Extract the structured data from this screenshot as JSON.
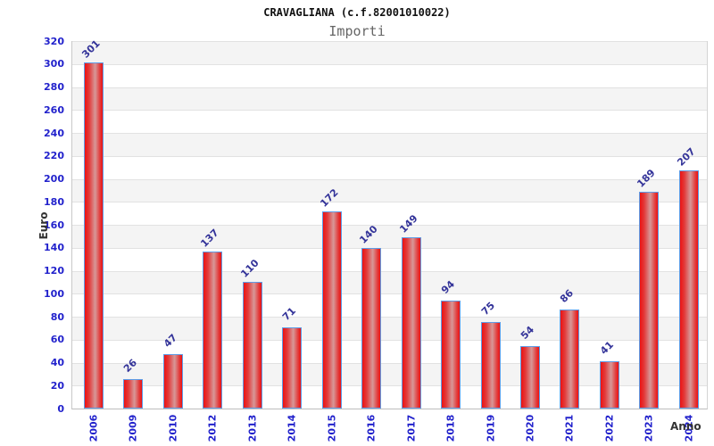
{
  "chart_data": {
    "type": "bar",
    "title": "CRAVAGLIANA (c.f.82001010022)",
    "subtitle": "Importi",
    "xlabel": "Anno",
    "ylabel": "Euro",
    "categories": [
      "2006",
      "2009",
      "2010",
      "2012",
      "2013",
      "2014",
      "2015",
      "2016",
      "2017",
      "2018",
      "2019",
      "2020",
      "2021",
      "2022",
      "2023",
      "2024"
    ],
    "values": [
      301,
      26,
      47,
      137,
      110,
      71,
      172,
      140,
      149,
      94,
      75,
      54,
      86,
      41,
      189,
      207
    ],
    "ylim": [
      0,
      320
    ],
    "ytick_step": 20,
    "grid": "horizontal gridlines with alternating gray/white bands",
    "legend": "none",
    "value_labels": "shown above bars, rotated 45 degrees",
    "colors": {
      "bar_fill": "#ec1212",
      "bar_fill_highlight": "#d79898",
      "bar_border": "#5e9ce6",
      "axis_tick_text": "#2222cc",
      "value_label_text": "#333399",
      "axis_name_text": "#333333",
      "band_gray": "#f4f4f4",
      "gridline": "#e2e2e2",
      "title_text": "#111111",
      "subtitle_text": "#666666"
    }
  }
}
